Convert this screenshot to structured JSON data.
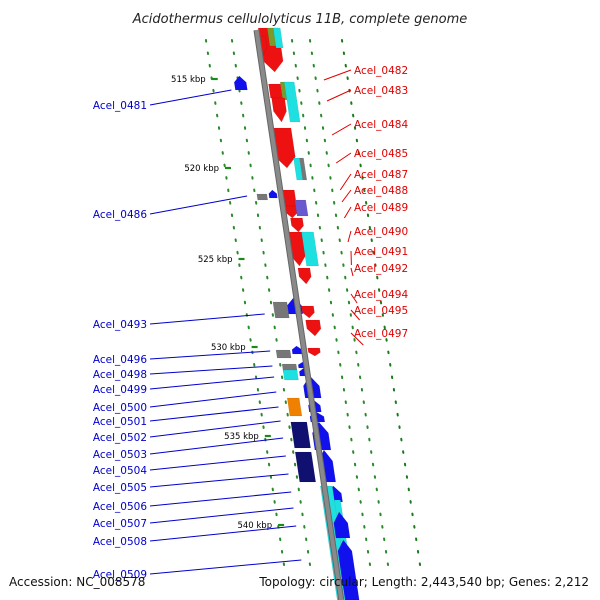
{
  "title": "Acidothermus cellulolyticus 11B, complete genome",
  "footer": {
    "accession": "Accession: NC_008578",
    "summary": "Topology: circular; Length: 2,443,540 bp; Genes: 2,212"
  },
  "colors": {
    "backbone": "#8a8a8a",
    "forward_label": "#e00000",
    "reverse_label": "#0000cc",
    "tick": "#1a8a1a",
    "red": "#ee1111",
    "blue": "#1111ee",
    "navy": "#101070",
    "cyan": "#1fe0e0",
    "gray": "#777777",
    "olive": "#7a9a2a",
    "orange": "#f08000",
    "purple": "#6a5acd"
  },
  "scale_ticks": [
    "515 kbp",
    "520 kbp",
    "525 kbp",
    "530 kbp",
    "535 kbp",
    "540 kbp"
  ],
  "forward_genes": [
    "Acel_0482",
    "Acel_0483",
    "Acel_0484",
    "Acel_0485",
    "Acel_0487",
    "Acel_0488",
    "Acel_0489",
    "Acel_0490",
    "Acel_0491",
    "Acel_0492",
    "Acel_0494",
    "Acel_0495",
    "Acel_0497"
  ],
  "reverse_genes": [
    "Acel_0481",
    "Acel_0486",
    "Acel_0493",
    "Acel_0496",
    "Acel_0498",
    "Acel_0499",
    "Acel_0500",
    "Acel_0501",
    "Acel_0502",
    "Acel_0503",
    "Acel_0504",
    "Acel_0505",
    "Acel_0506",
    "Acel_0507",
    "Acel_0508",
    "Acel_0509"
  ]
}
